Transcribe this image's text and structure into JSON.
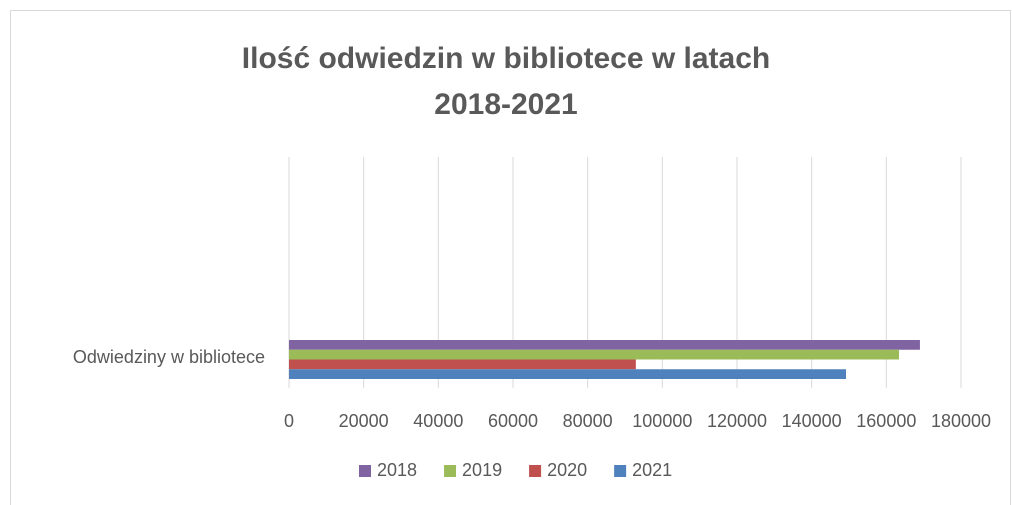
{
  "chart_data": {
    "type": "barh",
    "title": "Ilość odwiedzin w bibliotece w latach 2018-2021",
    "categories": [
      "Odwiedziny w bibliotece"
    ],
    "series": [
      {
        "name": "2018",
        "color": "#8064a2",
        "values": [
          169000
        ]
      },
      {
        "name": "2019",
        "color": "#9bbb59",
        "values": [
          163400
        ]
      },
      {
        "name": "2020",
        "color": "#c0504d",
        "values": [
          92900
        ]
      },
      {
        "name": "2021",
        "color": "#4f81bd",
        "values": [
          149200
        ]
      }
    ],
    "xlim": [
      0,
      180000
    ],
    "xticks": [
      0,
      20000,
      40000,
      60000,
      80000,
      100000,
      120000,
      140000,
      160000,
      180000
    ],
    "grid": true,
    "legend": "bottom"
  }
}
